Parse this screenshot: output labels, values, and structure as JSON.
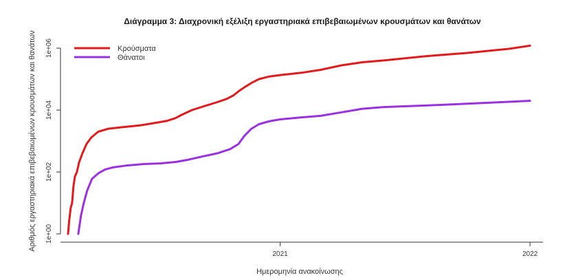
{
  "chart_data": {
    "type": "line",
    "title": "Διάγραμμα 3: Διαχρονική εξέλιξη εργαστηριακά επιβεβαιωμένων κρουσμάτων και θανάτων",
    "xlabel": "Ημερομηνία ανακοίνωσης",
    "ylabel": "Αριθμός εργαστηριακά επιβεβαιωμένων κρουσμάτων και θανάτων",
    "y_scale": "log",
    "ylim": [
      1,
      1000000
    ],
    "xlim": [
      "2020-02-15",
      "2022-01-20"
    ],
    "x_ticks": [
      {
        "date": "2021-01-01",
        "label": "2021"
      },
      {
        "date": "2022-01-01",
        "label": "2022"
      }
    ],
    "y_ticks": [
      {
        "value": 1,
        "label": "1e+00"
      },
      {
        "value": 100,
        "label": "1e+02"
      },
      {
        "value": 10000,
        "label": "1e+04"
      },
      {
        "value": 1000000,
        "label": "1e+06"
      }
    ],
    "legend_position": "top-left",
    "grid": false,
    "series": [
      {
        "name": "Κρούσματα",
        "color": "#e31a1c",
        "points": [
          [
            "2020-02-26",
            1
          ],
          [
            "2020-02-28",
            3
          ],
          [
            "2020-03-01",
            7
          ],
          [
            "2020-03-03",
            10
          ],
          [
            "2020-03-05",
            35
          ],
          [
            "2020-03-07",
            70
          ],
          [
            "2020-03-10",
            100
          ],
          [
            "2020-03-13",
            200
          ],
          [
            "2020-03-18",
            400
          ],
          [
            "2020-03-24",
            800
          ],
          [
            "2020-03-31",
            1300
          ],
          [
            "2020-04-10",
            2000
          ],
          [
            "2020-04-25",
            2500
          ],
          [
            "2020-05-15",
            2800
          ],
          [
            "2020-06-10",
            3200
          ],
          [
            "2020-07-01",
            3800
          ],
          [
            "2020-07-20",
            4500
          ],
          [
            "2020-08-01",
            5500
          ],
          [
            "2020-08-10",
            7000
          ],
          [
            "2020-08-25",
            10000
          ],
          [
            "2020-09-10",
            13000
          ],
          [
            "2020-10-01",
            18000
          ],
          [
            "2020-10-15",
            23000
          ],
          [
            "2020-10-25",
            30000
          ],
          [
            "2020-11-01",
            40000
          ],
          [
            "2020-11-10",
            55000
          ],
          [
            "2020-11-20",
            75000
          ],
          [
            "2020-12-01",
            100000
          ],
          [
            "2020-12-15",
            120000
          ],
          [
            "2021-01-01",
            135000
          ],
          [
            "2021-02-01",
            160000
          ],
          [
            "2021-03-01",
            200000
          ],
          [
            "2021-04-01",
            280000
          ],
          [
            "2021-05-01",
            350000
          ],
          [
            "2021-06-01",
            400000
          ],
          [
            "2021-08-01",
            550000
          ],
          [
            "2021-10-01",
            700000
          ],
          [
            "2021-12-01",
            950000
          ],
          [
            "2022-01-01",
            1200000
          ]
        ]
      },
      {
        "name": "Θάνατοι",
        "color": "#9b30e0",
        "points": [
          [
            "2020-03-12",
            1
          ],
          [
            "2020-03-14",
            2
          ],
          [
            "2020-03-16",
            4
          ],
          [
            "2020-03-20",
            10
          ],
          [
            "2020-03-25",
            25
          ],
          [
            "2020-04-01",
            60
          ],
          [
            "2020-04-10",
            90
          ],
          [
            "2020-04-20",
            120
          ],
          [
            "2020-05-01",
            140
          ],
          [
            "2020-05-20",
            160
          ],
          [
            "2020-06-15",
            180
          ],
          [
            "2020-07-10",
            190
          ],
          [
            "2020-08-01",
            210
          ],
          [
            "2020-08-20",
            250
          ],
          [
            "2020-09-10",
            320
          ],
          [
            "2020-10-01",
            400
          ],
          [
            "2020-10-20",
            550
          ],
          [
            "2020-11-01",
            800
          ],
          [
            "2020-11-10",
            1500
          ],
          [
            "2020-11-20",
            2500
          ],
          [
            "2020-12-01",
            3500
          ],
          [
            "2020-12-15",
            4300
          ],
          [
            "2021-01-01",
            5000
          ],
          [
            "2021-02-01",
            5800
          ],
          [
            "2021-03-01",
            6500
          ],
          [
            "2021-04-01",
            8500
          ],
          [
            "2021-05-01",
            11000
          ],
          [
            "2021-06-01",
            12500
          ],
          [
            "2021-08-01",
            14000
          ],
          [
            "2021-10-01",
            16000
          ],
          [
            "2021-12-01",
            18500
          ],
          [
            "2022-01-01",
            20000
          ]
        ]
      }
    ]
  }
}
